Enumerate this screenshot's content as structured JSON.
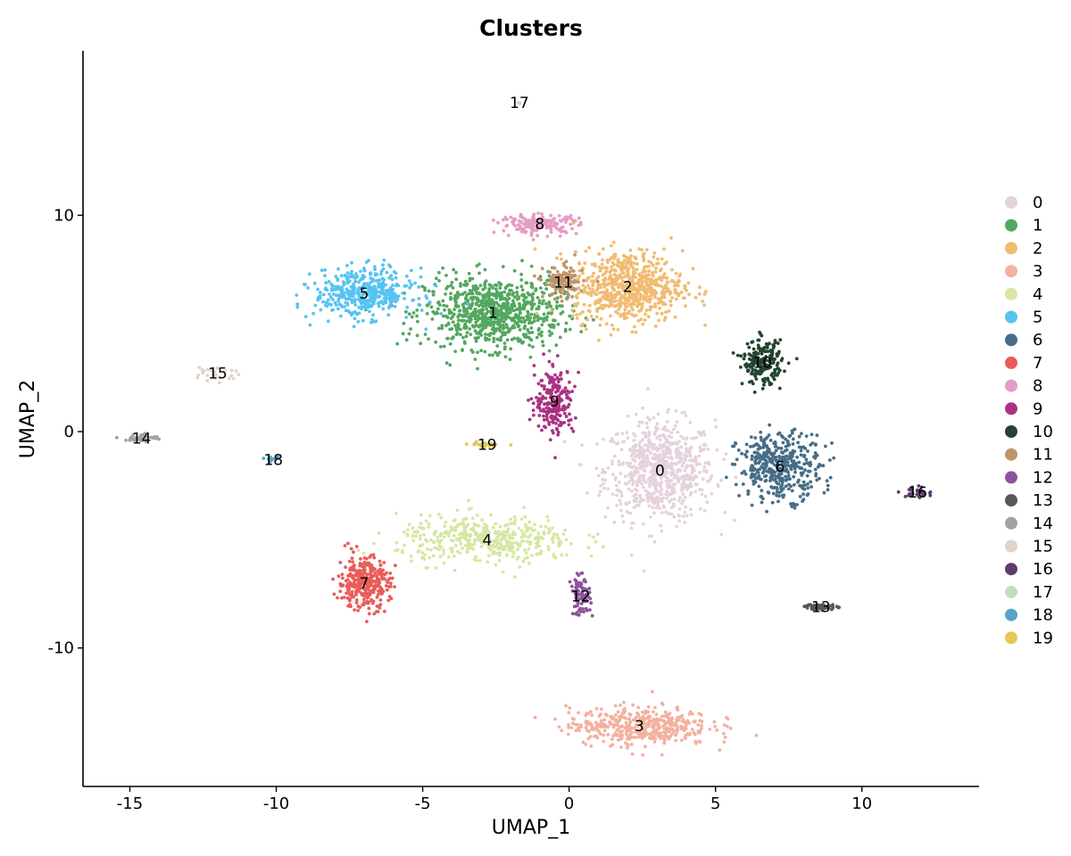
{
  "chart_data": {
    "type": "scatter",
    "title": "Clusters",
    "xlabel": "UMAP_1",
    "ylabel": "UMAP_2",
    "xlim": [
      -16.6,
      14.0
    ],
    "ylim": [
      -16.4,
      17.6
    ],
    "xticks": [
      -15,
      -10,
      -5,
      0,
      5,
      10
    ],
    "yticks": [
      -10,
      0,
      10
    ],
    "grid": false,
    "legend_position": "right",
    "clusters": [
      {
        "name": "0",
        "color": "#E5D2DD",
        "center": [
          3.1,
          -1.8
        ],
        "spread": [
          1.7,
          2.1
        ],
        "n": 700
      },
      {
        "name": "1",
        "color": "#53A85F",
        "center": [
          -2.6,
          5.5
        ],
        "spread": [
          2.1,
          1.5
        ],
        "n": 800
      },
      {
        "name": "2",
        "color": "#F1BB72",
        "center": [
          2.0,
          6.7
        ],
        "spread": [
          1.7,
          1.5
        ],
        "n": 650
      },
      {
        "name": "3",
        "color": "#F3B1A0",
        "center": [
          2.4,
          -13.6
        ],
        "spread": [
          2.2,
          0.8
        ],
        "n": 450
      },
      {
        "name": "4",
        "color": "#D6E7A3",
        "center": [
          -2.8,
          -5.0
        ],
        "spread": [
          2.8,
          1.0
        ],
        "n": 420
      },
      {
        "name": "5",
        "color": "#57C3F3",
        "center": [
          -7.0,
          6.4
        ],
        "spread": [
          1.5,
          1.0
        ],
        "n": 420
      },
      {
        "name": "6",
        "color": "#476D87",
        "center": [
          7.2,
          -1.6
        ],
        "spread": [
          1.3,
          1.4
        ],
        "n": 400
      },
      {
        "name": "7",
        "color": "#E95C59",
        "center": [
          -7.0,
          -7.0
        ],
        "spread": [
          0.8,
          1.1
        ],
        "n": 330
      },
      {
        "name": "8",
        "color": "#E59CC4",
        "center": [
          -1.0,
          9.6
        ],
        "spread": [
          1.2,
          0.4
        ],
        "n": 180
      },
      {
        "name": "9",
        "color": "#AB3282",
        "center": [
          -0.5,
          1.4
        ],
        "spread": [
          0.6,
          1.4
        ],
        "n": 220
      },
      {
        "name": "10",
        "color": "#23452F",
        "center": [
          6.6,
          3.2
        ],
        "spread": [
          0.6,
          0.9
        ],
        "n": 200
      },
      {
        "name": "11",
        "color": "#BD956A",
        "center": [
          -0.2,
          6.9
        ],
        "spread": [
          0.6,
          0.7
        ],
        "n": 130
      },
      {
        "name": "12",
        "color": "#8C549C",
        "center": [
          0.4,
          -7.6
        ],
        "spread": [
          0.3,
          0.8
        ],
        "n": 90
      },
      {
        "name": "13",
        "color": "#585658",
        "center": [
          8.6,
          -8.1
        ],
        "spread": [
          0.5,
          0.12
        ],
        "n": 60
      },
      {
        "name": "14",
        "color": "#9FA3A8",
        "center": [
          -14.6,
          -0.3
        ],
        "spread": [
          0.5,
          0.15
        ],
        "n": 50
      },
      {
        "name": "15",
        "color": "#E0D4CA",
        "center": [
          -12.0,
          2.7
        ],
        "spread": [
          0.7,
          0.4
        ],
        "n": 25
      },
      {
        "name": "16",
        "color": "#5F3D69",
        "center": [
          11.9,
          -2.8
        ],
        "spread": [
          0.6,
          0.25
        ],
        "n": 30
      },
      {
        "name": "17",
        "color": "#C5DEBA",
        "center": [
          -1.7,
          15.2
        ],
        "spread": [
          0.05,
          0.05
        ],
        "n": 3
      },
      {
        "name": "18",
        "color": "#58A4C3",
        "center": [
          -10.1,
          -1.3
        ],
        "spread": [
          0.2,
          0.1
        ],
        "n": 15
      },
      {
        "name": "19",
        "color": "#E4C755",
        "center": [
          -2.8,
          -0.6
        ],
        "spread": [
          0.6,
          0.1
        ],
        "n": 20
      }
    ]
  }
}
